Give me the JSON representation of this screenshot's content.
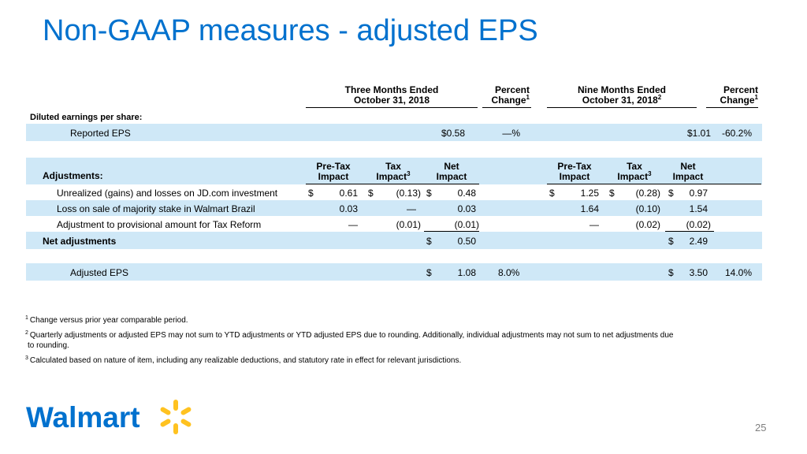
{
  "title": "Non-GAAP measures - adjusted EPS",
  "header": {
    "three_months_l1": "Three Months Ended",
    "three_months_l2": "October 31, 2018",
    "percent_l1": "Percent",
    "percent_l2": "Change",
    "percent_sup": "1",
    "nine_months_l1": "Nine Months Ended",
    "nine_months_l2": "October 31, 2018",
    "nine_months_sup": "2",
    "percent2_l1": "Percent",
    "percent2_l2": "Change",
    "percent2_sup": "1"
  },
  "diluted_label": "Diluted earnings per share:",
  "reported": {
    "label": "Reported EPS",
    "q_value": "$0.58",
    "q_change": "—%",
    "ytd_value": "$1.01",
    "ytd_change": "-60.2%"
  },
  "adjustments_header": {
    "label": "Adjustments:",
    "pretax_l1": "Pre-Tax",
    "pretax_l2": "Impact",
    "tax_l1": "Tax",
    "tax_l2": "Impact",
    "tax_sup": "3",
    "net_l1": "Net",
    "net_l2": "Impact"
  },
  "adjustments": [
    {
      "label": "Unrealized (gains) and losses on JD.com investment",
      "q_pretax_cur": "$",
      "q_pretax": "0.61",
      "q_tax_cur": "$",
      "q_tax": "(0.13)",
      "q_net_cur": "$",
      "q_net": "0.48",
      "y_pretax_cur": "$",
      "y_pretax": "1.25",
      "y_tax_cur": "$",
      "y_tax": "(0.28)",
      "y_net_cur": "$",
      "y_net": "0.97"
    },
    {
      "label": "Loss on sale of majority stake in Walmart Brazil",
      "q_pretax_cur": "",
      "q_pretax": "0.03",
      "q_tax_cur": "",
      "q_tax": "—",
      "q_net_cur": "",
      "q_net": "0.03",
      "y_pretax_cur": "",
      "y_pretax": "1.64",
      "y_tax_cur": "",
      "y_tax": "(0.10)",
      "y_net_cur": "",
      "y_net": "1.54"
    },
    {
      "label": "Adjustment to provisional amount for Tax Reform",
      "q_pretax_cur": "",
      "q_pretax": "—",
      "q_tax_cur": "",
      "q_tax": "(0.01)",
      "q_net_cur": "",
      "q_net": "(0.01)",
      "y_pretax_cur": "",
      "y_pretax": "—",
      "y_tax_cur": "",
      "y_tax": "(0.02)",
      "y_net_cur": "",
      "y_net": "(0.02)"
    }
  ],
  "net_adjustments": {
    "label": "Net adjustments",
    "q_cur": "$",
    "q_value": "0.50",
    "y_cur": "$",
    "y_value": "2.49"
  },
  "adjusted": {
    "label": "Adjusted EPS",
    "q_cur": "$",
    "q_value": "1.08",
    "q_change": "8.0%",
    "y_cur": "$",
    "y_value": "3.50",
    "y_change": "14.0%"
  },
  "footnotes": [
    {
      "num": "1",
      "text": "Change versus prior year comparable period."
    },
    {
      "num": "2",
      "text": "Quarterly adjustments or adjusted EPS may not sum to YTD adjustments or YTD adjusted EPS due to rounding.  Additionally, individual adjustments may not sum to net adjustments due",
      "text2": "to rounding."
    },
    {
      "num": "3",
      "text": "Calculated based on nature of item, including any realizable deductions, and statutory rate in effect for relevant jurisdictions."
    }
  ],
  "logo_text": "Walmart",
  "page_number": "25",
  "colors": {
    "brand_blue": "#0071ce",
    "spark_yellow": "#ffc220",
    "band_blue": "#cfe8f7"
  }
}
